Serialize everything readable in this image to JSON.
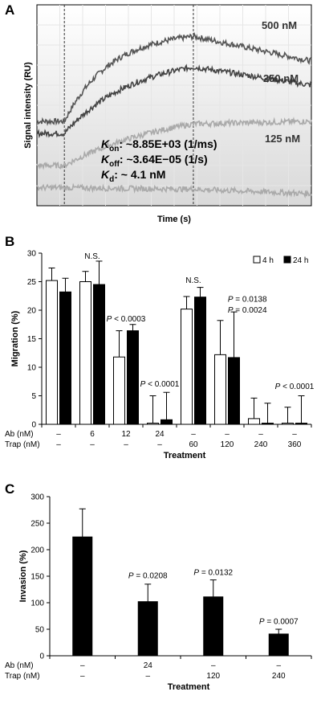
{
  "panels": {
    "a": {
      "label": "A"
    },
    "b": {
      "label": "B"
    },
    "c": {
      "label": "C"
    }
  },
  "chart_data": [
    {
      "id": "A",
      "type": "line",
      "title": "",
      "xlabel": "Time (s)",
      "ylabel": "Signal intensity (RU)",
      "grid": true,
      "x_range": [
        0,
        1
      ],
      "y_range": [
        0,
        1
      ],
      "injection_markers": [
        0.1,
        0.57
      ],
      "series": [
        {
          "name": "500 nM",
          "color": "#555555",
          "baseline": 0.42,
          "peak": 0.87,
          "end": 0.72,
          "rate": 6.0
        },
        {
          "name": "250 nM",
          "color": "#444444",
          "baseline": 0.36,
          "peak": 0.75,
          "end": 0.6,
          "rate": 4.0
        },
        {
          "name": "125 nM",
          "color": "#aaaaaa",
          "baseline": 0.2,
          "peak": 0.5,
          "end": 0.42,
          "rate": 2.5
        },
        {
          "name": "",
          "color": "#aaaaaa",
          "baseline": 0.09,
          "peak": 0.07,
          "end": 0.06,
          "rate": 1.0
        }
      ],
      "constants": [
        {
          "sym": "K",
          "sub": "on",
          "text": ": ~8.85E+03 (1/ms)"
        },
        {
          "sym": "K",
          "sub": "off",
          "text": ": ~3.64E−05 (1/s)"
        },
        {
          "sym": "K",
          "sub": "d",
          "text": ": ~ 4.1 nM"
        }
      ]
    },
    {
      "id": "B",
      "type": "bar",
      "xlabel": "Treatment",
      "ylabel": "Migration (%)",
      "ylim": [
        0,
        30
      ],
      "yticks": [
        0,
        5,
        10,
        15,
        20,
        25,
        30
      ],
      "legend": {
        "position": "top-right",
        "entries": [
          "4 h",
          "24 h"
        ]
      },
      "row_labels": [
        "Ab (nM)",
        "Trap (nM)"
      ],
      "categories": [
        {
          "ab": "–",
          "trap": "–"
        },
        {
          "ab": "6",
          "trap": "–"
        },
        {
          "ab": "12",
          "trap": "–"
        },
        {
          "ab": "24",
          "trap": "–"
        },
        {
          "ab": "–",
          "trap": "60"
        },
        {
          "ab": "–",
          "trap": "120"
        },
        {
          "ab": "–",
          "trap": "240"
        },
        {
          "ab": "–",
          "trap": "360"
        }
      ],
      "series": [
        {
          "name": "4 h",
          "fill": "#ffffff",
          "values": [
            25.2,
            25.0,
            11.8,
            0.2,
            20.2,
            12.2,
            1.0,
            0.2
          ],
          "errors": [
            2.2,
            1.8,
            4.6,
            4.8,
            2.2,
            6.0,
            3.6,
            2.8
          ]
        },
        {
          "name": "24 h",
          "fill": "#000000",
          "values": [
            23.2,
            24.5,
            16.4,
            0.8,
            22.3,
            11.7,
            0.2,
            0.2
          ],
          "errors": [
            2.4,
            4.1,
            1.1,
            4.8,
            1.7,
            8.0,
            3.5,
            4.8
          ]
        }
      ],
      "annotations": [
        {
          "text": "N.S.",
          "cat": 1,
          "y": 29.0
        },
        {
          "p": "P",
          "text": " < 0.0003",
          "cat": 2,
          "y": 18.0
        },
        {
          "p": "P",
          "text": " < 0.0001",
          "cat": 3,
          "y": 6.6
        },
        {
          "text": "N.S.",
          "cat": 4,
          "y": 24.8
        },
        {
          "p": "P",
          "text": " = 0.0138",
          "cat": 5.6,
          "y": 21.5
        },
        {
          "p": "P",
          "text": " = 0.0024",
          "cat": 5.6,
          "y": 19.6
        },
        {
          "p": "P",
          "text": " < 0.0001",
          "cat": 7.0,
          "y": 6.2
        }
      ]
    },
    {
      "id": "C",
      "type": "bar",
      "xlabel": "Treatment",
      "ylabel": "Invasion (%)",
      "ylim": [
        0,
        300
      ],
      "yticks": [
        0,
        50,
        100,
        150,
        200,
        250,
        300
      ],
      "row_labels": [
        "Ab (nM)",
        "Trap (nM)"
      ],
      "categories": [
        {
          "ab": "–",
          "trap": "–"
        },
        {
          "ab": "24",
          "trap": "–"
        },
        {
          "ab": "–",
          "trap": "120"
        },
        {
          "ab": "–",
          "trap": "240"
        }
      ],
      "series": [
        {
          "name": "",
          "fill": "#000000",
          "values": [
            224,
            102,
            111,
            41
          ],
          "errors": [
            53,
            33,
            32,
            9
          ]
        }
      ],
      "annotations": [
        {
          "p": "P",
          "text": " = 0.0208",
          "cat": 1,
          "y": 146
        },
        {
          "p": "P",
          "text": " = 0.0132",
          "cat": 2,
          "y": 152
        },
        {
          "p": "P",
          "text": " = 0.0007",
          "cat": 3,
          "y": 60
        }
      ]
    }
  ]
}
